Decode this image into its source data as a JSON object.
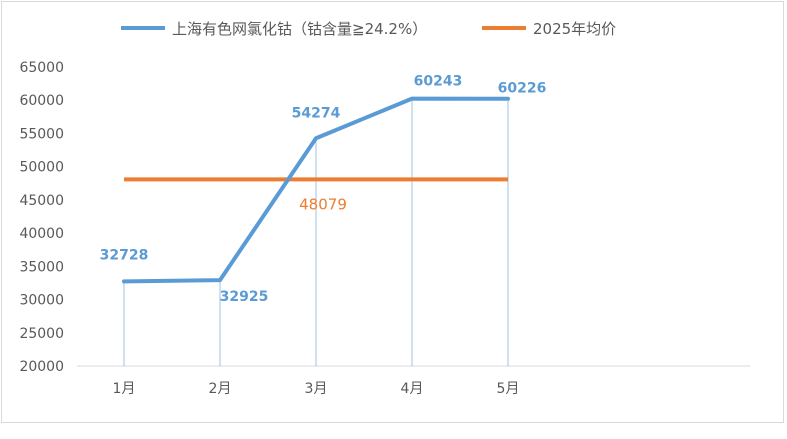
{
  "chart_data": {
    "type": "line",
    "categories": [
      "1月",
      "2月",
      "3月",
      "4月",
      "5月"
    ],
    "series": [
      {
        "name": "上海有色网氯化钴（钴含量≧24.2%）",
        "values": [
          32728,
          32925,
          54274,
          60243,
          60226
        ],
        "color": "#5b9bd5"
      },
      {
        "name": "2025年均价",
        "values": [
          48079,
          48079,
          48079,
          48079,
          48079
        ],
        "color": "#ed7d31"
      }
    ],
    "data_labels": {
      "series0": [
        "32728",
        "32925",
        "54274",
        "60243",
        "60226"
      ],
      "series1": "48079"
    },
    "y_ticks": [
      "20000",
      "25000",
      "30000",
      "35000",
      "40000",
      "45000",
      "50000",
      "55000",
      "60000",
      "65000"
    ],
    "ylim": [
      20000,
      65000
    ],
    "title": "",
    "xlabel": "",
    "ylabel": "",
    "grid": false,
    "drop_lines": true,
    "legend_position": "top"
  }
}
